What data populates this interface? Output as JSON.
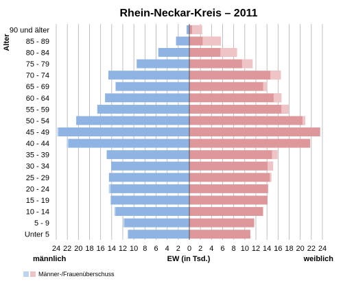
{
  "chart_data": {
    "type": "bar",
    "orientation": "horizontal",
    "layout": "population-pyramid",
    "title": "Rhein-Neckar-Kreis – 2011",
    "ylabel": "Alter",
    "xlabel": "EW (in Tsd.)",
    "left_label": "männlich",
    "right_label": "weiblich",
    "xlim": [
      -24,
      24
    ],
    "x_ticks": [
      "24",
      "22",
      "20",
      "18",
      "16",
      "14",
      "12",
      "10",
      "8",
      "6",
      "4",
      "2",
      "0",
      "2",
      "4",
      "6",
      "8",
      "10",
      "12",
      "14",
      "16",
      "18",
      "20",
      "22",
      "24"
    ],
    "grid": true,
    "categories": [
      "90 und älter",
      "85 - 89",
      "80 - 84",
      "75 - 79",
      "70 - 74",
      "65 - 69",
      "60 - 64",
      "55 - 59",
      "50 - 54",
      "45 - 49",
      "40 - 44",
      "35 - 39",
      "30 - 34",
      "25 - 29",
      "20 - 24",
      "15 - 19",
      "10 - 14",
      "5 - 9",
      "Unter 5"
    ],
    "series": [
      {
        "name": "männlich",
        "values": [
          0.5,
          2.4,
          5.6,
          9.5,
          14.6,
          13.3,
          15.2,
          16.6,
          20.4,
          23.8,
          22.1,
          14.9,
          14.1,
          14.5,
          14.5,
          14.2,
          13.5,
          11.9,
          11.1
        ]
      },
      {
        "name": "weiblich",
        "values": [
          2.3,
          5.7,
          8.6,
          11.4,
          16.5,
          14.0,
          16.6,
          17.9,
          20.9,
          23.6,
          21.8,
          15.9,
          15.1,
          14.8,
          14.2,
          14.1,
          13.3,
          11.7,
          11.0
        ]
      }
    ],
    "legend": [
      {
        "label": "Männer-/Frauenüberschuss"
      }
    ],
    "colors": {
      "male": "#8fb4e3",
      "male_surplus": "#bcd4f0",
      "female": "#de979b",
      "female_surplus": "#efc4c7",
      "grid": "#b0b0b0",
      "background": "#ffffff"
    }
  }
}
